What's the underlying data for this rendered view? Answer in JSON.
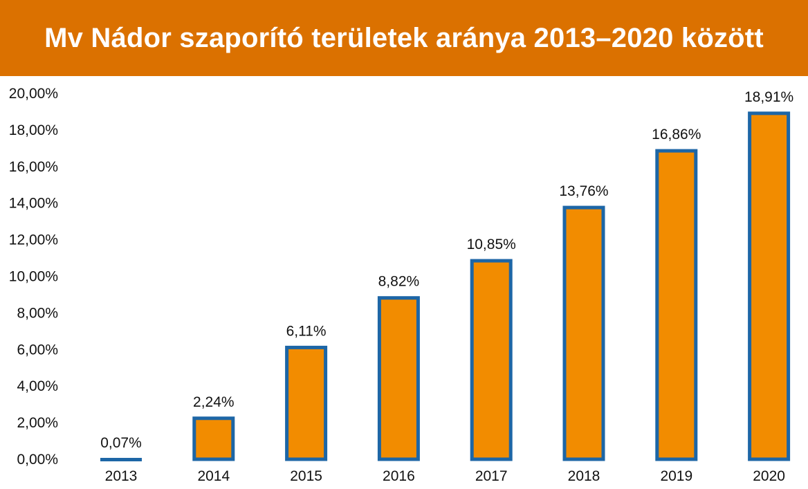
{
  "header": {
    "title": "Mv Nádor szaporító területek aránya 2013–2020 között"
  },
  "colors": {
    "banner": "#db7100",
    "bar_fill": "#f28c00",
    "bar_border": "#1d66a6",
    "text": "#111111"
  },
  "chart_data": {
    "type": "bar",
    "title": "Mv Nádor szaporító területek aránya 2013–2020 között",
    "xlabel": "",
    "ylabel": "",
    "categories": [
      "2013",
      "2014",
      "2015",
      "2016",
      "2017",
      "2018",
      "2019",
      "2020"
    ],
    "values": [
      0.07,
      2.24,
      6.11,
      8.82,
      10.85,
      13.76,
      16.86,
      18.91
    ],
    "data_labels": [
      "0,07%",
      "2,24%",
      "6,11%",
      "8,82%",
      "10,85%",
      "13,76%",
      "16,86%",
      "18,91%"
    ],
    "ylim": [
      0,
      20
    ],
    "y_ticks": [
      0,
      2,
      4,
      6,
      8,
      10,
      12,
      14,
      16,
      18,
      20
    ],
    "y_tick_labels": [
      "0,00%",
      "2,00%",
      "4,00%",
      "6,00%",
      "8,00%",
      "10,00%",
      "12,00%",
      "14,00%",
      "16,00%",
      "18,00%",
      "20,00%"
    ],
    "grid": false,
    "legend": "none"
  }
}
